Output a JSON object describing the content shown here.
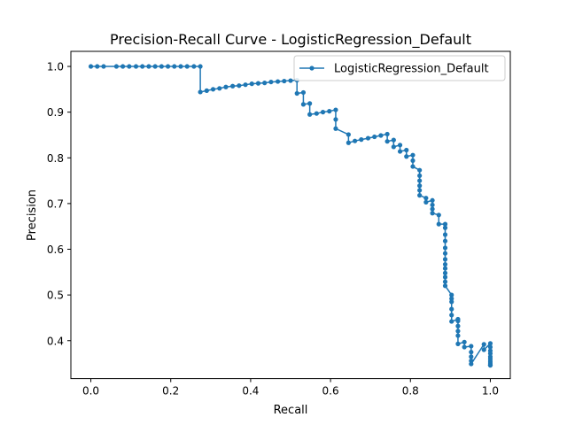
{
  "chart_data": {
    "type": "line",
    "title": "Precision-Recall Curve - LogisticRegression_Default",
    "xlabel": "Recall",
    "ylabel": "Precision",
    "xlim": [
      -0.05,
      1.05
    ],
    "ylim": [
      0.317,
      1.033
    ],
    "xticks": [
      0.0,
      0.2,
      0.4,
      0.6,
      0.8,
      1.0
    ],
    "xtick_labels": [
      "0.0",
      "0.2",
      "0.4",
      "0.6",
      "0.8",
      "1.0"
    ],
    "yticks": [
      0.4,
      0.5,
      0.6,
      0.7,
      0.8,
      0.9,
      1.0
    ],
    "ytick_labels": [
      "0.4",
      "0.5",
      "0.6",
      "0.7",
      "0.8",
      "0.9",
      "1.0"
    ],
    "grid": false,
    "legend": {
      "position": "upper right",
      "entries": [
        "LogisticRegression_Default"
      ]
    },
    "series": [
      {
        "name": "LogisticRegression_Default",
        "color": "#1f77b4",
        "marker": "circle",
        "x": [
          0.0,
          0.016,
          0.032,
          0.064,
          0.08,
          0.096,
          0.113,
          0.129,
          0.145,
          0.161,
          0.177,
          0.193,
          0.209,
          0.225,
          0.241,
          0.258,
          0.274,
          0.274,
          0.29,
          0.306,
          0.322,
          0.338,
          0.355,
          0.371,
          0.387,
          0.403,
          0.419,
          0.435,
          0.451,
          0.468,
          0.484,
          0.5,
          0.516,
          0.516,
          0.532,
          0.532,
          0.548,
          0.548,
          0.565,
          0.581,
          0.597,
          0.613,
          0.613,
          0.613,
          0.645,
          0.645,
          0.661,
          0.677,
          0.694,
          0.71,
          0.726,
          0.742,
          0.742,
          0.758,
          0.758,
          0.774,
          0.774,
          0.79,
          0.79,
          0.806,
          0.806,
          0.806,
          0.823,
          0.823,
          0.823,
          0.823,
          0.823,
          0.823,
          0.839,
          0.839,
          0.855,
          0.855,
          0.855,
          0.855,
          0.871,
          0.871,
          0.887,
          0.887,
          0.887,
          0.887,
          0.887,
          0.887,
          0.887,
          0.887,
          0.887,
          0.887,
          0.887,
          0.887,
          0.887,
          0.903,
          0.903,
          0.903,
          0.903,
          0.903,
          0.903,
          0.919,
          0.919,
          0.919,
          0.919,
          0.919,
          0.919,
          0.935,
          0.935,
          0.952,
          0.952,
          0.952,
          0.952,
          0.952,
          0.984,
          0.984,
          1.0,
          1.0,
          1.0,
          1.0,
          1.0,
          1.0,
          1.0,
          1.0,
          1.0,
          1.0,
          1.0
        ],
        "y": [
          1.0,
          1.0,
          1.0,
          1.0,
          1.0,
          1.0,
          1.0,
          1.0,
          1.0,
          1.0,
          1.0,
          1.0,
          1.0,
          1.0,
          1.0,
          1.0,
          1.0,
          0.944,
          0.947,
          0.95,
          0.952,
          0.955,
          0.957,
          0.958,
          0.96,
          0.962,
          0.963,
          0.964,
          0.966,
          0.967,
          0.968,
          0.969,
          0.97,
          0.941,
          0.943,
          0.917,
          0.919,
          0.895,
          0.897,
          0.9,
          0.902,
          0.905,
          0.884,
          0.864,
          0.851,
          0.833,
          0.837,
          0.84,
          0.843,
          0.846,
          0.849,
          0.852,
          0.836,
          0.839,
          0.824,
          0.828,
          0.814,
          0.817,
          0.803,
          0.806,
          0.794,
          0.781,
          0.773,
          0.761,
          0.75,
          0.739,
          0.729,
          0.718,
          0.712,
          0.703,
          0.707,
          0.697,
          0.688,
          0.679,
          0.675,
          0.655,
          0.655,
          0.647,
          0.632,
          0.618,
          0.603,
          0.591,
          0.578,
          0.567,
          0.558,
          0.548,
          0.539,
          0.529,
          0.52,
          0.5,
          0.492,
          0.485,
          0.469,
          0.456,
          0.442,
          0.447,
          0.443,
          0.432,
          0.421,
          0.411,
          0.393,
          0.397,
          0.386,
          0.388,
          0.375,
          0.365,
          0.356,
          0.349,
          0.392,
          0.38,
          0.394,
          0.386,
          0.378,
          0.372,
          0.365,
          0.36,
          0.355,
          0.351,
          0.347,
          0.347,
          0.346
        ]
      }
    ]
  }
}
